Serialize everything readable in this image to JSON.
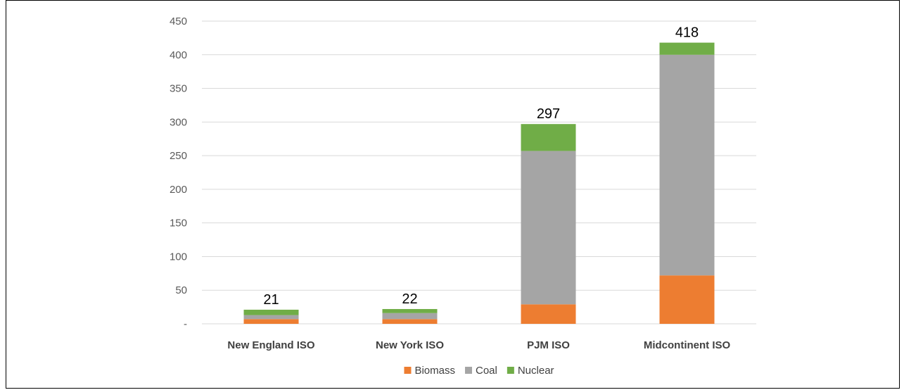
{
  "chart_data": {
    "type": "bar",
    "stacked": true,
    "title": "",
    "xlabel": "",
    "ylabel": "",
    "ylim": [
      0,
      450
    ],
    "yticks": [
      0,
      50,
      100,
      150,
      200,
      250,
      300,
      350,
      400,
      450
    ],
    "ytick_labels": [
      "-",
      "50",
      "100",
      "150",
      "200",
      "250",
      "300",
      "350",
      "400",
      "450"
    ],
    "grid": "horizontal",
    "legend_position": "bottom",
    "categories": [
      "New England ISO",
      "New York ISO",
      "PJM ISO",
      "Midcontinent ISO"
    ],
    "series": [
      {
        "name": "Biomass",
        "color": "#ED7D31",
        "values": [
          7,
          7,
          29,
          72
        ]
      },
      {
        "name": "Coal",
        "color": "#A5A5A5",
        "values": [
          6,
          9,
          228,
          328
        ]
      },
      {
        "name": "Nuclear",
        "color": "#70AD47",
        "values": [
          8,
          6,
          40,
          18
        ]
      }
    ],
    "totals": [
      21,
      22,
      297,
      418
    ],
    "total_labels": [
      "21",
      "22",
      "297",
      "418"
    ]
  }
}
